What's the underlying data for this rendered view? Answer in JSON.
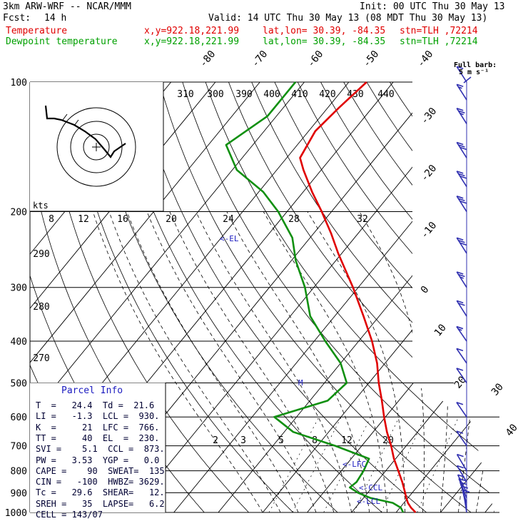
{
  "header": {
    "model": "3km ARW-WRF -- NCAR/MMM",
    "init": "Init: 00 UTC Thu 30 May 13",
    "fcst_label": "Fcst:",
    "fcst_value": "14 h",
    "valid": "Valid: 14 UTC Thu 30 May 13 (08 MDT Thu 30 May 13)",
    "temp_line": {
      "label": "Temperature",
      "xy": "x,y=922.18,221.99",
      "latlon": "lat,lon= 30.39, -84.35",
      "stn": "stn=TLH ,72214"
    },
    "dew_line": {
      "label": "Dewpoint temperature",
      "xy": "x,y=922.18,221.99",
      "latlon": "lat,lon= 30.39, -84.35",
      "stn": "stn=TLH ,72214"
    }
  },
  "colors": {
    "temperature": "#e00000",
    "dewpoint": "#109010",
    "isotherm": "#000000",
    "grid": "#000000",
    "label_blue": "#1c1cc0",
    "barb": "#3030b0"
  },
  "barb_label": {
    "line1": "Full barb:",
    "line2": "5 m s⁻¹"
  },
  "hodograph": {
    "label": "kts"
  },
  "parcel_info": {
    "title": "Parcel Info",
    "rows": [
      "T  =   24.4  Td =  21.6",
      "LI =   -1.3  LCL =  930.",
      "K  =     21  LFC =  766.",
      "TT =     40  EL  =  230.",
      "SVI =    5.1  CCL =  873.",
      "PW =   3.53  YGP =   0.0",
      "CAPE =    90  SWEAT=  135",
      "CIN =   -100  HWBZ= 3629.",
      "Tc =   29.6  SHEAR=   12.",
      "SREH =   35  LAPSE=   6.2",
      "CELL = 143/07"
    ]
  },
  "level_markers": {
    "el": "<-EL",
    "m": "M",
    "lfc": "<-LFC",
    "ccl": "<-CCL",
    "lcl": "<-LCL"
  },
  "chart_data": {
    "type": "line",
    "title": "",
    "yscale": "log-pressure",
    "ylim": [
      1000,
      100
    ],
    "pressure_ticks": [
      100,
      200,
      300,
      400,
      500,
      600,
      700,
      800,
      900,
      1000
    ],
    "isotherm_labels": [
      "-80",
      "-70",
      "-60",
      "-50",
      "-40",
      "-30",
      "-20",
      "-10",
      "0",
      "10",
      "20",
      "30",
      "40"
    ],
    "theta_labels": [
      "310",
      "300",
      "390",
      "400",
      "410",
      "420",
      "430",
      "440"
    ],
    "theta_side_labels": [
      "290",
      "280",
      "270"
    ],
    "mixing_ratio_labels_upper": [
      "8",
      "12",
      "16",
      "20",
      "24",
      "28",
      "32"
    ],
    "mixing_ratio_labels_lower": [
      "2",
      "3",
      "5",
      "8",
      "12",
      "20"
    ],
    "series": [
      {
        "name": "Temperature",
        "points": [
          [
            1000,
            24.4
          ],
          [
            975,
            22.5
          ],
          [
            950,
            20.9
          ],
          [
            925,
            19.6
          ],
          [
            900,
            18.4
          ],
          [
            850,
            15.8
          ],
          [
            800,
            12.8
          ],
          [
            750,
            9.6
          ],
          [
            700,
            6.6
          ],
          [
            650,
            3.1
          ],
          [
            600,
            -0.3
          ],
          [
            550,
            -3.8
          ],
          [
            500,
            -7.8
          ],
          [
            450,
            -11.8
          ],
          [
            400,
            -17.0
          ],
          [
            350,
            -23.5
          ],
          [
            300,
            -31.2
          ],
          [
            250,
            -40.8
          ],
          [
            225,
            -46.0
          ],
          [
            200,
            -52.2
          ],
          [
            180,
            -58.0
          ],
          [
            160,
            -64.0
          ],
          [
            150,
            -67.0
          ],
          [
            130,
            -68.5
          ],
          [
            115,
            -67.5
          ],
          [
            100,
            -66.0
          ]
        ]
      },
      {
        "name": "Dewpoint temperature",
        "points": [
          [
            1000,
            21.6
          ],
          [
            975,
            20.2
          ],
          [
            950,
            17.5
          ],
          [
            925,
            11.5
          ],
          [
            900,
            7.8
          ],
          [
            875,
            5.0
          ],
          [
            850,
            5.5
          ],
          [
            800,
            5.0
          ],
          [
            750,
            4.0
          ],
          [
            700,
            -6.0
          ],
          [
            650,
            -18.0
          ],
          [
            600,
            -25.0
          ],
          [
            550,
            -16.0
          ],
          [
            500,
            -15.0
          ],
          [
            450,
            -20.0
          ],
          [
            400,
            -27.5
          ],
          [
            350,
            -35.5
          ],
          [
            300,
            -42.0
          ],
          [
            260,
            -49.0
          ],
          [
            230,
            -54.0
          ],
          [
            200,
            -62.0
          ],
          [
            180,
            -69.0
          ],
          [
            160,
            -79.0
          ],
          [
            140,
            -86.0
          ],
          [
            120,
            -82.0
          ],
          [
            100,
            -82.0
          ]
        ]
      }
    ],
    "wind_barbs": [
      {
        "p": 1000,
        "speed_kt": 10,
        "dir": 200
      },
      {
        "p": 975,
        "speed_kt": 12,
        "dir": 210
      },
      {
        "p": 950,
        "speed_kt": 12,
        "dir": 220
      },
      {
        "p": 925,
        "speed_kt": 10,
        "dir": 230
      },
      {
        "p": 900,
        "speed_kt": 10,
        "dir": 240
      },
      {
        "p": 850,
        "speed_kt": 8,
        "dir": 250
      },
      {
        "p": 800,
        "speed_kt": 8,
        "dir": 250
      },
      {
        "p": 700,
        "speed_kt": 8,
        "dir": 260
      },
      {
        "p": 600,
        "speed_kt": 10,
        "dir": 260
      },
      {
        "p": 500,
        "speed_kt": 12,
        "dir": 260
      },
      {
        "p": 450,
        "speed_kt": 12,
        "dir": 260
      },
      {
        "p": 400,
        "speed_kt": 15,
        "dir": 260
      },
      {
        "p": 350,
        "speed_kt": 20,
        "dir": 255
      },
      {
        "p": 300,
        "speed_kt": 25,
        "dir": 255
      },
      {
        "p": 250,
        "speed_kt": 30,
        "dir": 255
      },
      {
        "p": 200,
        "speed_kt": 30,
        "dir": 255
      },
      {
        "p": 175,
        "speed_kt": 30,
        "dir": 255
      },
      {
        "p": 150,
        "speed_kt": 30,
        "dir": 255
      },
      {
        "p": 125,
        "speed_kt": 25,
        "dir": 255
      },
      {
        "p": 110,
        "speed_kt": 15,
        "dir": 255
      },
      {
        "p": 100,
        "speed_kt": 10,
        "dir": 255
      }
    ]
  }
}
